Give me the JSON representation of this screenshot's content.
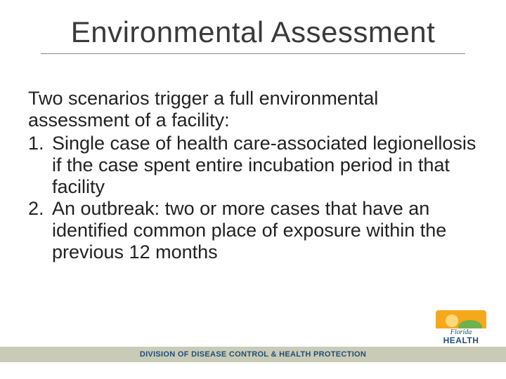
{
  "slide": {
    "title": "Environmental Assessment",
    "intro": "Two scenarios trigger a full environmental assessment of a facility:",
    "items": [
      {
        "num": "1.",
        "text": "Single case of health care-associated legionellosis if the case spent entire incubation period in that facility"
      },
      {
        "num": "2.",
        "text": "An outbreak: two or more cases that have an identified common place of exposure within the previous 12 months"
      }
    ]
  },
  "footer": {
    "text": "DIVISION OF DISEASE CONTROL & HEALTH PROTECTION"
  },
  "logo": {
    "line1": "Florida",
    "line2": "HEALTH"
  },
  "colors": {
    "title_color": "#3a3a3a",
    "body_color": "#222222",
    "footer_bg": "#c9cbb6",
    "footer_text": "#1f4e79",
    "logo_orange": "#f6a81c",
    "logo_blue": "#1f4e79"
  },
  "typography": {
    "title_fontsize": 42,
    "body_fontsize": 27,
    "footer_fontsize": 11
  }
}
